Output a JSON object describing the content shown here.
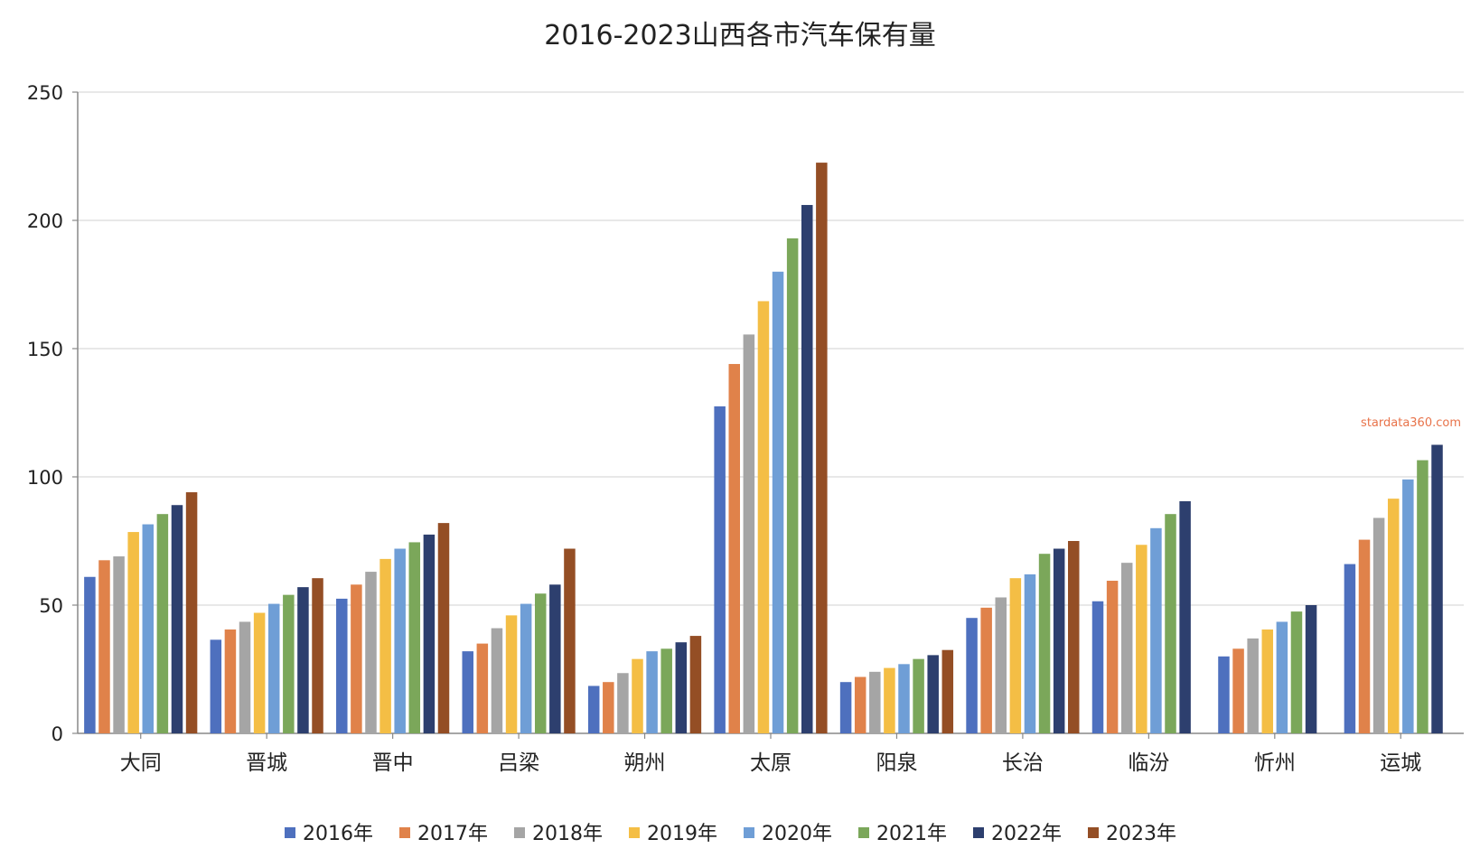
{
  "chart_data": {
    "type": "bar",
    "title": "2016-2023山西各市汽车保有量",
    "xlabel": "",
    "ylabel": "",
    "ylim": [
      0,
      250
    ],
    "yticks": [
      0,
      50,
      100,
      150,
      200,
      250
    ],
    "grid": true,
    "legend_position": "bottom",
    "categories": [
      "大同",
      "晋城",
      "晋中",
      "吕梁",
      "朔州",
      "太原",
      "阳泉",
      "长治",
      "临汾",
      "忻州",
      "运城"
    ],
    "series": [
      {
        "name": "2016年",
        "color": "#4e70be",
        "values": [
          61,
          36.5,
          52.5,
          32,
          18.5,
          127.5,
          20,
          45,
          51.5,
          30,
          66
        ]
      },
      {
        "name": "2017年",
        "color": "#e0824a",
        "values": [
          67.5,
          40.5,
          58,
          35,
          20,
          144,
          22,
          49,
          59.5,
          33,
          75.5
        ]
      },
      {
        "name": "2018年",
        "color": "#a5a5a5",
        "values": [
          69,
          43.5,
          63,
          41,
          23.5,
          155.5,
          24,
          53,
          66.5,
          37,
          84
        ]
      },
      {
        "name": "2019年",
        "color": "#f4be45",
        "values": [
          78.5,
          47,
          68,
          46,
          29,
          168.5,
          25.5,
          60.5,
          73.5,
          40.5,
          91.5
        ]
      },
      {
        "name": "2020年",
        "color": "#6f9ed6",
        "values": [
          81.5,
          50.5,
          72,
          50.5,
          32,
          180,
          27,
          62,
          80,
          43.5,
          99
        ]
      },
      {
        "name": "2021年",
        "color": "#7ba75a",
        "values": [
          85.5,
          54,
          74.5,
          54.5,
          33,
          193,
          29,
          70,
          85.5,
          47.5,
          106.5
        ]
      },
      {
        "name": "2022年",
        "color": "#2d3f6e",
        "values": [
          89,
          57,
          77.5,
          58,
          35.5,
          206,
          30.5,
          72,
          90.5,
          50,
          112.5
        ]
      },
      {
        "name": "2023年",
        "color": "#944e25",
        "values": [
          94,
          60.5,
          82,
          72,
          38,
          222.5,
          32.5,
          75,
          null,
          null,
          null
        ]
      }
    ],
    "watermark": "stardata360.com"
  }
}
